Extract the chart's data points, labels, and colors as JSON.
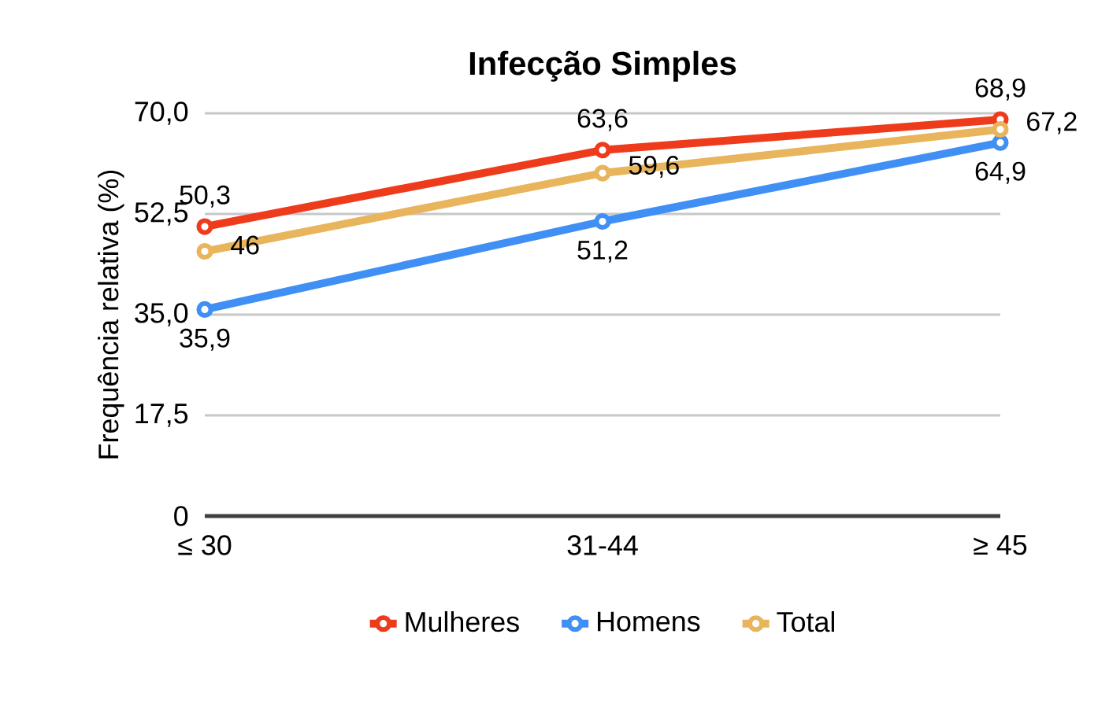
{
  "chart_data": {
    "type": "line",
    "title": "Infecção Simples",
    "ylabel": "Frequência relativa (%)",
    "categories": [
      "≤ 30",
      "31-44",
      "≥ 45"
    ],
    "series": [
      {
        "name": "Mulheres",
        "color": "#ee3b1c",
        "values": [
          50.3,
          63.6,
          68.9
        ],
        "value_labels": [
          "50,3",
          "63,6",
          "68,9"
        ]
      },
      {
        "name": "Homens",
        "color": "#3f8ff5",
        "values": [
          35.9,
          51.2,
          64.9
        ],
        "value_labels": [
          "35,9",
          "51,2",
          "64,9"
        ]
      },
      {
        "name": "Total",
        "color": "#e8b45c",
        "values": [
          46,
          59.6,
          67.2
        ],
        "value_labels": [
          "46",
          "59,6",
          "67,2"
        ]
      }
    ],
    "ylim": [
      0,
      70
    ],
    "yticks": [
      0,
      {
        "value": 17.5,
        "label": "17,5"
      },
      {
        "value": 35,
        "label": "35,0"
      },
      {
        "value": 52.5,
        "label": "52,5"
      },
      {
        "value": 70,
        "label": "70,0"
      }
    ],
    "grid": "y",
    "legend": "bottom",
    "marker": "circle",
    "line_style": "solid"
  }
}
